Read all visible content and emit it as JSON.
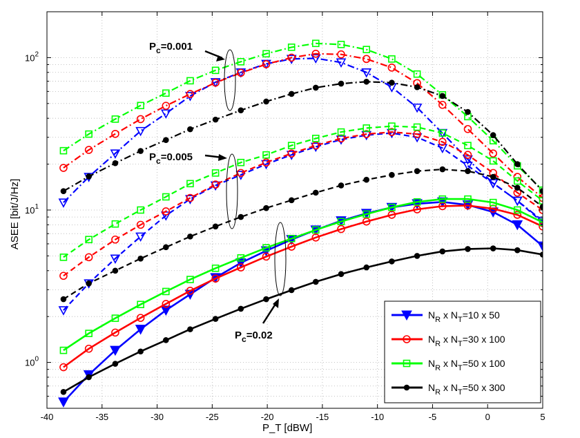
{
  "chart_data": {
    "type": "line",
    "title": "",
    "xlabel": "P_T [dBW]",
    "ylabel": "ASEE [bit/J/Hz]",
    "xlim": [
      -40,
      5
    ],
    "ylim": [
      0.5,
      200
    ],
    "yscale": "log",
    "grid": true,
    "legend_position": "bottom-right",
    "x_ticks": [
      -40,
      -35,
      -30,
      -25,
      -20,
      -15,
      -10,
      -5,
      0,
      5
    ],
    "x_tick_labels": [
      "-40",
      "-35",
      "-30",
      "-25",
      "-20",
      "-15",
      "-10",
      "-5",
      "0",
      "5"
    ],
    "y_ticks": [
      {
        "value": 1,
        "base": "10",
        "exp": "0"
      },
      {
        "value": 10,
        "base": "10",
        "exp": "1"
      },
      {
        "value": 100,
        "base": "10",
        "exp": "2"
      }
    ],
    "legend": [
      {
        "series": "10x50",
        "prefix": "N",
        "sub1": "R",
        "middle": " x N",
        "sub2": "T",
        "suffix": "=10 x 50"
      },
      {
        "series": "30x100",
        "prefix": "N",
        "sub1": "R",
        "middle": " x N",
        "sub2": "T",
        "suffix": "=30 x 100"
      },
      {
        "series": "50x100",
        "prefix": "N",
        "sub1": "R",
        "middle": " x N",
        "sub2": "T",
        "suffix": "=50 x 100"
      },
      {
        "series": "50x300",
        "prefix": "N",
        "sub1": "R",
        "middle": " x N",
        "sub2": "T",
        "suffix": "=50 x 300"
      }
    ],
    "series_styles": {
      "10x50": {
        "color": "#0000ff",
        "marker": "triangle-down"
      },
      "30x100": {
        "color": "#ff0000",
        "marker": "circle"
      },
      "50x100": {
        "color": "#00ff00",
        "marker": "square"
      },
      "50x300": {
        "color": "#000000",
        "marker": "dot"
      }
    },
    "annotations": [
      {
        "id": "pc-0.001",
        "text_base": "P",
        "sub": "c",
        "text_value": "=0.001"
      },
      {
        "id": "pc-0.005",
        "text_base": "P",
        "sub": "c",
        "text_value": "=0.005"
      },
      {
        "id": "pc-0.02",
        "text_base": "P",
        "sub": "c",
        "text_value": "=0.02"
      }
    ],
    "groups": [
      {
        "pc": 0.001,
        "line_style": "dashdot",
        "series": [
          {
            "name": "10x50",
            "x": [
              -38.5,
              -36.2,
              -33.8,
              -31.5,
              -29.2,
              -27.0,
              -24.7,
              -22.4,
              -20.1,
              -17.8,
              -15.6,
              -13.3,
              -11.0,
              -8.7,
              -6.4,
              -4.1,
              -1.8,
              0.5,
              2.7,
              5.0
            ],
            "y": [
              11.2,
              16.5,
              23.5,
              33,
              43,
              56,
              69,
              80,
              91,
              98,
              99,
              93,
              80,
              64,
              47,
              32,
              21.5,
              15.0,
              11.5,
              8.5
            ]
          },
          {
            "name": "30x100",
            "x": [
              -38.5,
              -36.2,
              -33.8,
              -31.5,
              -29.2,
              -27.0,
              -24.7,
              -22.4,
              -20.1,
              -17.8,
              -15.6,
              -13.3,
              -11.0,
              -8.7,
              -6.4,
              -4.1,
              -1.8,
              0.5,
              2.7,
              5.0
            ],
            "y": [
              18.9,
              24.8,
              31.6,
              39.5,
              48.3,
              57.7,
              68.5,
              79.5,
              90.5,
              100,
              106,
              105,
              98,
              86,
              68,
              49,
              34,
              23.5,
              16.5,
              12
            ]
          },
          {
            "name": "50x100",
            "x": [
              -38.5,
              -36.2,
              -33.8,
              -31.5,
              -29.2,
              -27.0,
              -24.7,
              -22.4,
              -20.1,
              -17.8,
              -15.6,
              -13.3,
              -11.0,
              -8.7,
              -6.4,
              -4.1,
              -1.8,
              0.5,
              2.7,
              5.0
            ],
            "y": [
              24.5,
              31.5,
              39.5,
              48.5,
              58.5,
              70.5,
              82.5,
              94,
              106,
              117,
              124,
              122,
              113,
              98,
              78,
              57,
              41,
              28.5,
              19.5,
              13.5
            ]
          },
          {
            "name": "50x300",
            "x": [
              -38.5,
              -36.2,
              -33.8,
              -31.5,
              -29.2,
              -27.0,
              -24.7,
              -22.4,
              -20.1,
              -17.8,
              -15.6,
              -13.3,
              -11.0,
              -8.7,
              -6.4,
              -4.1,
              -1.8,
              0.5,
              2.7,
              5.0
            ],
            "y": [
              13.3,
              16.6,
              20.3,
              24.4,
              28.8,
              33.9,
              39.2,
              45.1,
              51.5,
              57.8,
              63.5,
              67.5,
              69.5,
              68.5,
              64,
              56,
              44,
              31,
              20,
              13.3
            ]
          }
        ]
      },
      {
        "pc": 0.005,
        "line_style": "dashed",
        "series": [
          {
            "name": "10x50",
            "x": [
              -38.5,
              -36.2,
              -33.8,
              -31.5,
              -29.2,
              -27.0,
              -24.7,
              -22.4,
              -20.1,
              -17.8,
              -15.6,
              -13.3,
              -11.0,
              -8.7,
              -6.4,
              -4.1,
              -1.8,
              0.5,
              2.7,
              5.0
            ],
            "y": [
              2.2,
              3.3,
              4.8,
              6.7,
              9.2,
              11.8,
              14.5,
              17.0,
              20.0,
              23.0,
              26.0,
              29.0,
              31.0,
              32.0,
              30.0,
              25.5,
              19.5,
              15.0,
              11.5,
              8.3
            ]
          },
          {
            "name": "30x100",
            "x": [
              -38.5,
              -36.2,
              -33.8,
              -31.5,
              -29.2,
              -27.0,
              -24.7,
              -22.4,
              -20.1,
              -17.8,
              -15.6,
              -13.3,
              -11.0,
              -8.7,
              -6.4,
              -4.1,
              -1.8,
              0.5,
              2.7,
              5.0
            ],
            "y": [
              3.7,
              4.9,
              6.4,
              8.0,
              9.8,
              12.0,
              14.7,
              17.5,
              20.5,
              23.5,
              26.5,
              29.5,
              31.5,
              32.5,
              31.5,
              28.0,
              23.0,
              17.5,
              13.0,
              10.0
            ]
          },
          {
            "name": "50x100",
            "x": [
              -38.5,
              -36.2,
              -33.8,
              -31.5,
              -29.2,
              -27.0,
              -24.7,
              -22.4,
              -20.1,
              -17.8,
              -15.6,
              -13.3,
              -11.0,
              -8.7,
              -6.4,
              -4.1,
              -1.8,
              0.5,
              2.7,
              5.0
            ],
            "y": [
              4.9,
              6.4,
              8.1,
              10.0,
              12.2,
              14.9,
              17.5,
              20.5,
              23.0,
              26.5,
              29.5,
              32.5,
              34.5,
              35.5,
              35.0,
              32.0,
              26.5,
              21.0,
              15.5,
              11.5
            ]
          },
          {
            "name": "50x300",
            "x": [
              -38.5,
              -36.2,
              -33.8,
              -31.5,
              -29.2,
              -27.0,
              -24.7,
              -22.4,
              -20.1,
              -17.8,
              -15.6,
              -13.3,
              -11.0,
              -8.7,
              -6.4,
              -4.1,
              -1.8,
              0.5,
              2.7,
              5.0
            ],
            "y": [
              2.6,
              3.3,
              4.0,
              4.8,
              5.7,
              6.7,
              7.8,
              9.0,
              10.3,
              11.6,
              13.0,
              14.5,
              15.8,
              17.0,
              18.0,
              18.5,
              18.0,
              16.5,
              14.0,
              10.5
            ]
          }
        ]
      },
      {
        "pc": 0.02,
        "line_style": "solid",
        "series": [
          {
            "name": "10x50",
            "x": [
              -38.5,
              -36.2,
              -33.8,
              -31.5,
              -29.2,
              -27.0,
              -24.7,
              -22.4,
              -20.1,
              -17.8,
              -15.6,
              -13.3,
              -11.0,
              -8.7,
              -6.4,
              -4.1,
              -1.8,
              0.5,
              2.7,
              5.0
            ],
            "y": [
              0.55,
              0.83,
              1.2,
              1.65,
              2.2,
              2.8,
              3.6,
              4.5,
              5.4,
              6.4,
              7.4,
              8.5,
              9.5,
              10.4,
              11.0,
              11.3,
              10.8,
              9.7,
              8.0,
              5.8
            ]
          },
          {
            "name": "30x100",
            "x": [
              -38.5,
              -36.2,
              -33.8,
              -31.5,
              -29.2,
              -27.0,
              -24.7,
              -22.4,
              -20.1,
              -17.8,
              -15.6,
              -13.3,
              -11.0,
              -8.7,
              -6.4,
              -4.1,
              -1.8,
              0.5,
              2.7,
              5.0
            ],
            "y": [
              0.93,
              1.23,
              1.57,
              1.96,
              2.42,
              2.95,
              3.55,
              4.2,
              4.95,
              5.75,
              6.6,
              7.5,
              8.4,
              9.3,
              10.1,
              10.6,
              10.7,
              10.2,
              9.3,
              7.8
            ]
          },
          {
            "name": "50x100",
            "x": [
              -38.5,
              -36.2,
              -33.8,
              -31.5,
              -29.2,
              -27.0,
              -24.7,
              -22.4,
              -20.1,
              -17.8,
              -15.6,
              -13.3,
              -11.0,
              -8.7,
              -6.4,
              -4.1,
              -1.8,
              0.5,
              2.7,
              5.0
            ],
            "y": [
              1.2,
              1.55,
              1.95,
              2.4,
              2.92,
              3.5,
              4.15,
              4.85,
              5.65,
              6.5,
              7.4,
              8.4,
              9.4,
              10.4,
              11.3,
              11.8,
              11.8,
              11.2,
              10.0,
              8.3
            ]
          },
          {
            "name": "50x300",
            "x": [
              -38.5,
              -36.2,
              -33.8,
              -31.5,
              -29.2,
              -27.0,
              -24.7,
              -22.4,
              -20.1,
              -17.8,
              -15.6,
              -13.3,
              -11.0,
              -8.7,
              -6.4,
              -4.1,
              -1.8,
              0.5,
              2.7,
              5.0
            ],
            "y": [
              0.64,
              0.8,
              0.98,
              1.18,
              1.4,
              1.65,
              1.93,
              2.25,
              2.6,
              2.98,
              3.38,
              3.8,
              4.2,
              4.6,
              5.0,
              5.35,
              5.55,
              5.6,
              5.45,
              5.1
            ]
          }
        ]
      }
    ]
  }
}
